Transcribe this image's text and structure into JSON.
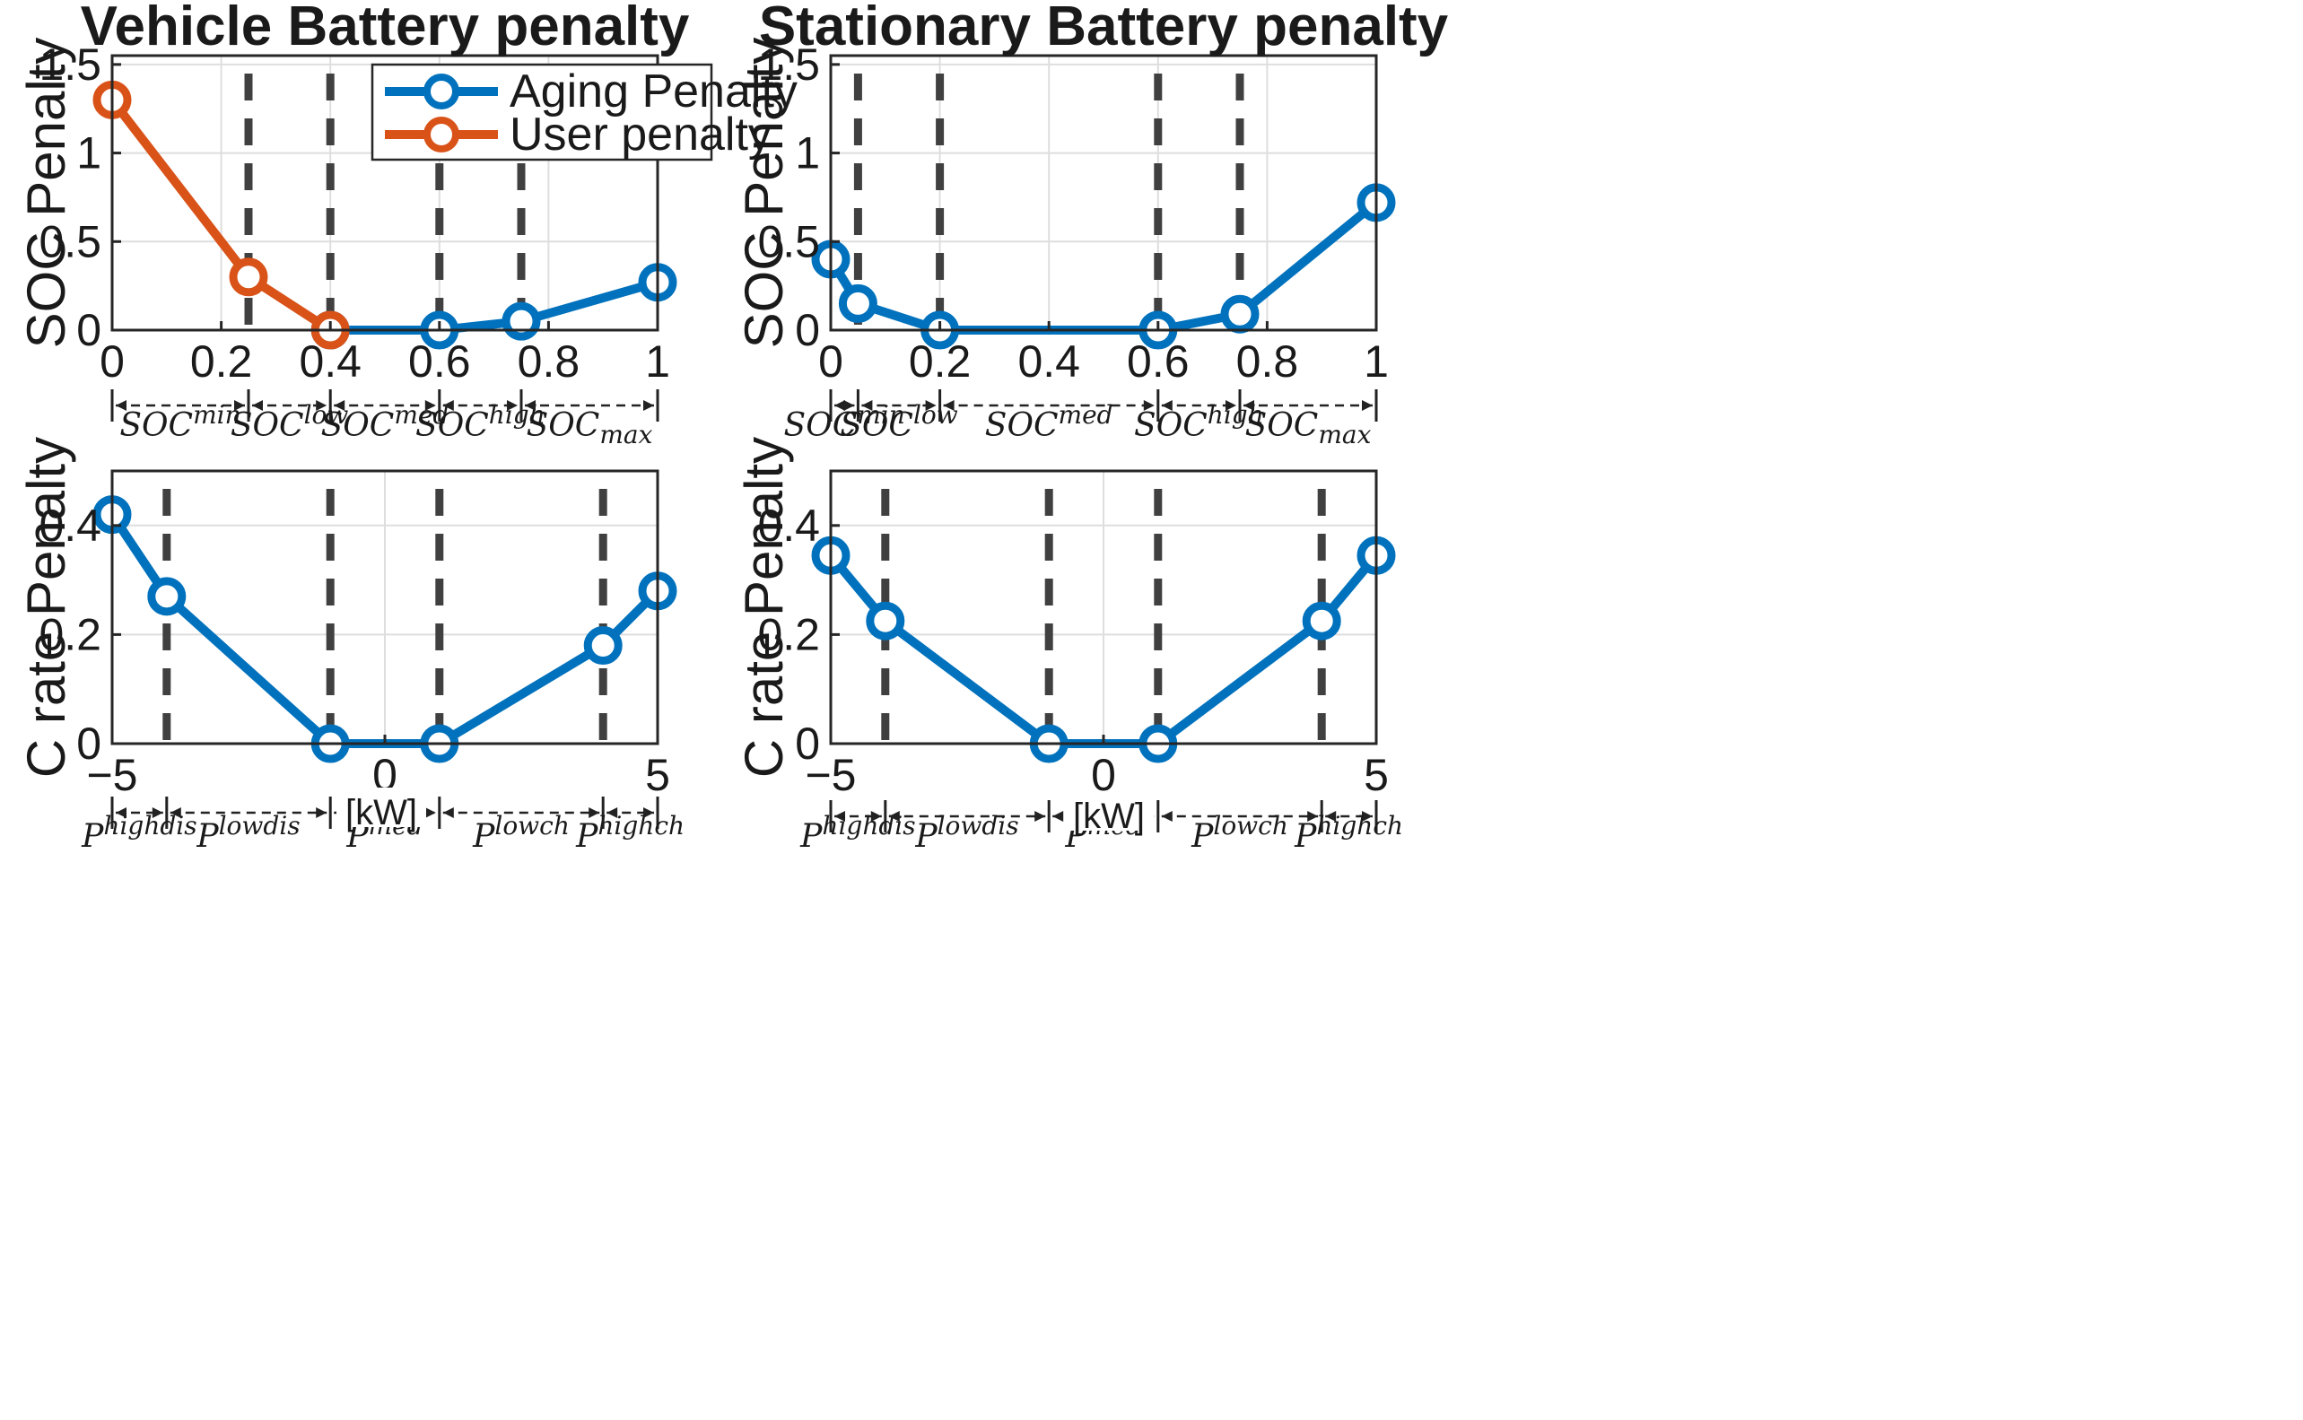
{
  "colors": {
    "aging": "#0072BD",
    "user": "#D95319",
    "threshold": "#404040",
    "grid": "#dedede",
    "axis": "#262626"
  },
  "legend": {
    "aging_label": "Aging Penalty",
    "user_label": "User penalty"
  },
  "chart_data": [
    {
      "id": "vehicle-soc",
      "type": "line",
      "title": "Vehicle Battery penalty",
      "ylabel": "SOC Penalty",
      "xlim": [
        0,
        1
      ],
      "ylim": [
        0,
        1.55
      ],
      "xticks": [
        0,
        0.2,
        0.4,
        0.6,
        0.8,
        1
      ],
      "xtick_labels": [
        "0",
        "0.2",
        "0.4",
        "0.6",
        "0.8",
        "1"
      ],
      "yticks": [
        0,
        0.5,
        1,
        1.5
      ],
      "ytick_labels": [
        "0",
        "0.5",
        "1",
        "1.5"
      ],
      "grid": true,
      "legend": "top-right",
      "thresholds": [
        0.25,
        0.4,
        0.6,
        0.75
      ],
      "series": [
        {
          "name": "Aging Penalty",
          "color_key": "aging",
          "x": [
            0.4,
            0.6,
            0.75,
            1
          ],
          "y": [
            0,
            0,
            0.05,
            0.27
          ]
        },
        {
          "name": "User penalty",
          "color_key": "user",
          "x": [
            0,
            0.25,
            0.4
          ],
          "y": [
            1.3,
            0.3,
            0
          ]
        }
      ],
      "zones": {
        "edges": [
          0,
          0.25,
          0.4,
          0.6,
          0.75,
          1
        ],
        "labels": [
          [
            "SOC",
            "min",
            ""
          ],
          [
            "SOC",
            "low",
            ""
          ],
          [
            "SOC",
            "med",
            ""
          ],
          [
            "SOC",
            "high",
            ""
          ],
          [
            "SOC",
            "",
            "max"
          ]
        ]
      }
    },
    {
      "id": "stationary-soc",
      "type": "line",
      "title": "Stationary Battery penalty",
      "ylabel": "SOC Penalty",
      "xlim": [
        0,
        1
      ],
      "ylim": [
        0,
        1.55
      ],
      "xticks": [
        0,
        0.2,
        0.4,
        0.6,
        0.8,
        1
      ],
      "xtick_labels": [
        "0",
        "0.2",
        "0.4",
        "0.6",
        "0.8",
        "1"
      ],
      "yticks": [
        0,
        0.5,
        1,
        1.5
      ],
      "ytick_labels": [
        "0",
        "0.5",
        "1",
        "1.5"
      ],
      "grid": true,
      "thresholds": [
        0.05,
        0.2,
        0.6,
        0.75
      ],
      "series": [
        {
          "name": "Aging Penalty",
          "color_key": "aging",
          "x": [
            0,
            0.05,
            0.2,
            0.6,
            0.75,
            1
          ],
          "y": [
            0.4,
            0.15,
            0,
            0,
            0.09,
            0.72
          ]
        }
      ],
      "zones": {
        "edges": [
          0,
          0.05,
          0.2,
          0.6,
          0.75,
          1
        ],
        "labels": [
          [
            "SOC",
            "min",
            ""
          ],
          [
            "SOC",
            "low",
            ""
          ],
          [
            "SOC",
            "med",
            ""
          ],
          [
            "SOC",
            "high",
            ""
          ],
          [
            "SOC",
            "",
            "max"
          ]
        ]
      }
    },
    {
      "id": "vehicle-crate",
      "type": "line",
      "ylabel": "C rate Penalty",
      "xlim": [
        -5,
        5
      ],
      "ylim": [
        0,
        0.5
      ],
      "xticks": [
        -5,
        0,
        5
      ],
      "xtick_labels": [
        "−5",
        "0",
        "5"
      ],
      "yticks": [
        0,
        0.2,
        0.4
      ],
      "ytick_labels": [
        "0",
        "0.2",
        "0.4"
      ],
      "grid": true,
      "thresholds": [
        -4,
        -1,
        1,
        4
      ],
      "series": [
        {
          "name": "Aging Penalty",
          "color_key": "aging",
          "x": [
            -5,
            -4,
            -1,
            1,
            4,
            5
          ],
          "y": [
            0.42,
            0.27,
            0,
            0,
            0.18,
            0.28
          ]
        }
      ],
      "unit_label": "[kW]",
      "zones": {
        "edges": [
          -5,
          -4,
          -1,
          1,
          4,
          5
        ],
        "labels": [
          [
            "P",
            "highdis",
            ""
          ],
          [
            "P",
            "lowdis",
            ""
          ],
          [
            "P",
            "med",
            ""
          ],
          [
            "P",
            "lowch",
            ""
          ],
          [
            "P",
            "highch",
            ""
          ]
        ]
      }
    },
    {
      "id": "stationary-crate",
      "type": "line",
      "ylabel": "C rate Penalty",
      "xlim": [
        -5,
        5
      ],
      "ylim": [
        0,
        0.5
      ],
      "xticks": [
        -5,
        0,
        5
      ],
      "xtick_labels": [
        "−5",
        "0",
        "5"
      ],
      "yticks": [
        0,
        0.2,
        0.4
      ],
      "ytick_labels": [
        "0",
        "0.2",
        "0.4"
      ],
      "grid": true,
      "thresholds": [
        -4,
        -1,
        1,
        4
      ],
      "series": [
        {
          "name": "Aging Penalty",
          "color_key": "aging",
          "x": [
            -5,
            -4,
            -1,
            1,
            4,
            5
          ],
          "y": [
            0.345,
            0.225,
            0,
            0,
            0.225,
            0.345
          ]
        }
      ],
      "unit_label": "[kW]",
      "zones": {
        "edges": [
          -5,
          -4,
          -1,
          1,
          4,
          5
        ],
        "labels": [
          [
            "P",
            "highdis",
            ""
          ],
          [
            "P",
            "lowdis",
            ""
          ],
          [
            "P",
            "med",
            ""
          ],
          [
            "P",
            "lowch",
            ""
          ],
          [
            "P",
            "highch",
            ""
          ]
        ]
      }
    }
  ]
}
